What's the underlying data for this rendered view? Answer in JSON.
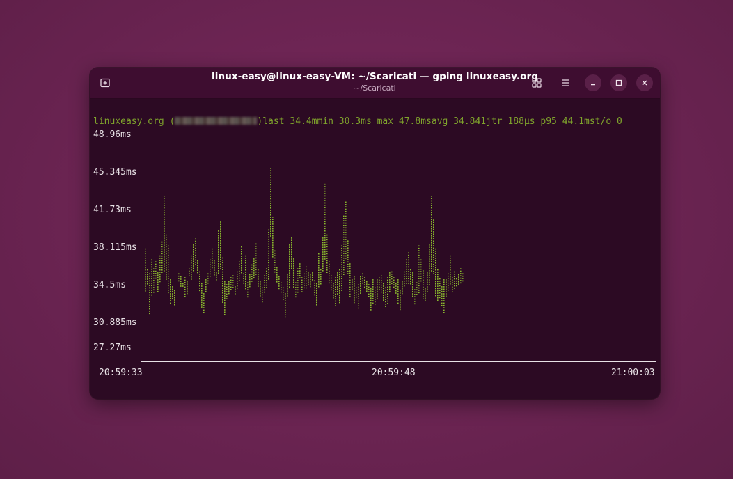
{
  "window": {
    "title": "linux-easy@linux-easy-VM: ~/Scaricati — gping linuxeasy.org",
    "subtitle": "~/Scaricati",
    "icons": {
      "new_tab": "new-tab-icon",
      "view": "grid-view-icon",
      "menu": "hamburger-menu-icon",
      "minimize": "minimize-icon",
      "maximize": "maximize-icon",
      "close": "close-icon"
    }
  },
  "terminal": {
    "host": "linuxeasy.org",
    "open_paren": " (",
    "close_paren": ")",
    "stats": "last 34.4mmin 30.3ms max 47.8msavg 34.841jtr 188µs p95 44.1mst/o 0",
    "text_color": "#7fa32c",
    "plot_color": "#8ab82e"
  },
  "chart_data": {
    "type": "scatter",
    "title": "",
    "xlabel": "",
    "ylabel": "",
    "y_tick_labels": [
      "48.96ms",
      "45.345ms",
      "41.73ms",
      "38.115ms",
      "34.5ms",
      "30.885ms",
      "27.27ms"
    ],
    "x_tick_labels": [
      "20:59:33",
      "20:59:48",
      "21:00:03"
    ],
    "ylim": [
      27.27,
      48.96
    ],
    "series": [
      {
        "values": [
          [
            33.2,
            37.5
          ],
          [
            33.8,
            35.4
          ],
          [
            31.0,
            35.0
          ],
          [
            32.8,
            36.4
          ],
          [
            33.0,
            35.5
          ],
          [
            34.4,
            36.2
          ],
          [
            33.2,
            35.1
          ],
          [
            34.0,
            36.8
          ],
          [
            35.0,
            38.2
          ],
          [
            35.2,
            42.8
          ],
          [
            34.3,
            38.9
          ],
          [
            33.1,
            37.8
          ],
          [
            32.0,
            34.4
          ],
          [
            32.3,
            33.7
          ],
          [
            31.8,
            33.3
          ],
          [
            34.5,
            33.1
          ],
          [
            34.1,
            35.0
          ],
          [
            33.6,
            34.7
          ],
          [
            33.7,
            34.0
          ],
          [
            32.5,
            34.6
          ],
          [
            33.0,
            34.2
          ],
          [
            34.6,
            35.5
          ],
          [
            34.3,
            36.8
          ],
          [
            35.1,
            37.9
          ],
          [
            35.9,
            38.5
          ],
          [
            34.9,
            36.3
          ],
          [
            33.1,
            35.2
          ],
          [
            31.5,
            34.0
          ],
          [
            30.9,
            33.0
          ],
          [
            33.2,
            34.4
          ],
          [
            33.9,
            35.0
          ],
          [
            34.7,
            36.4
          ],
          [
            35.6,
            37.5
          ],
          [
            34.8,
            36.3
          ],
          [
            34.3,
            35.1
          ],
          [
            35.0,
            39.3
          ],
          [
            35.5,
            40.2
          ],
          [
            32.0,
            36.6
          ],
          [
            30.7,
            34.2
          ],
          [
            32.4,
            33.9
          ],
          [
            32.8,
            34.2
          ],
          [
            33.2,
            34.6
          ],
          [
            33.4,
            34.8
          ],
          [
            32.9,
            33.7
          ],
          [
            33.4,
            35.2
          ],
          [
            34.3,
            36.2
          ],
          [
            35.0,
            37.7
          ],
          [
            33.9,
            35.0
          ],
          [
            33.3,
            36.8
          ],
          [
            32.5,
            34.1
          ],
          [
            33.5,
            34.9
          ],
          [
            34.1,
            35.9
          ],
          [
            34.4,
            36.5
          ],
          [
            34.8,
            38.0
          ],
          [
            33.6,
            35.4
          ],
          [
            32.7,
            34.2
          ],
          [
            32.1,
            33.6
          ],
          [
            33.0,
            34.8
          ],
          [
            33.5,
            35.5
          ],
          [
            34.4,
            39.4
          ],
          [
            38.6,
            45.6
          ],
          [
            36.6,
            40.7
          ],
          [
            35.0,
            37.3
          ],
          [
            34.0,
            35.6
          ],
          [
            33.4,
            34.7
          ],
          [
            33.0,
            34.1
          ],
          [
            32.2,
            33.6
          ],
          [
            30.6,
            33.0
          ],
          [
            32.6,
            34.9
          ],
          [
            33.6,
            37.9
          ],
          [
            35.5,
            38.6
          ],
          [
            33.6,
            36.5
          ],
          [
            32.5,
            34.1
          ],
          [
            33.0,
            35.5
          ],
          [
            34.4,
            36.0
          ],
          [
            33.1,
            34.6
          ],
          [
            33.4,
            35.0
          ],
          [
            33.5,
            35.7
          ],
          [
            33.9,
            35.1
          ],
          [
            33.6,
            34.9
          ],
          [
            34.2,
            35.1
          ],
          [
            32.7,
            34.3
          ],
          [
            31.8,
            34.0
          ],
          [
            33.5,
            37.0
          ],
          [
            33.9,
            35.4
          ],
          [
            35.3,
            38.6
          ],
          [
            36.4,
            44.0
          ],
          [
            35.1,
            38.9
          ],
          [
            34.0,
            36.2
          ],
          [
            33.2,
            34.8
          ],
          [
            32.4,
            34.0
          ],
          [
            31.6,
            34.6
          ],
          [
            32.8,
            35.1
          ],
          [
            32.0,
            35.4
          ],
          [
            33.2,
            37.8
          ],
          [
            34.8,
            40.8
          ],
          [
            36.4,
            42.2
          ],
          [
            35.0,
            38.3
          ],
          [
            32.7,
            36.0
          ],
          [
            33.4,
            34.4
          ],
          [
            32.0,
            34.7
          ],
          [
            32.5,
            33.6
          ],
          [
            31.5,
            33.9
          ],
          [
            33.0,
            34.7
          ],
          [
            33.9,
            35.0
          ],
          [
            33.6,
            34.6
          ],
          [
            33.2,
            34.2
          ],
          [
            32.6,
            33.9
          ],
          [
            31.3,
            33.5
          ],
          [
            32.0,
            34.4
          ],
          [
            31.9,
            33.6
          ],
          [
            32.5,
            34.4
          ],
          [
            33.3,
            34.6
          ],
          [
            33.1,
            34.8
          ],
          [
            32.2,
            34.0
          ],
          [
            31.6,
            33.6
          ],
          [
            32.0,
            34.6
          ],
          [
            33.2,
            35.1
          ],
          [
            34.0,
            35.2
          ],
          [
            33.6,
            34.6
          ],
          [
            33.0,
            34.0
          ],
          [
            32.0,
            34.4
          ],
          [
            31.4,
            33.3
          ],
          [
            32.8,
            34.2
          ],
          [
            33.6,
            35.2
          ],
          [
            33.9,
            36.4
          ],
          [
            34.0,
            37.1
          ],
          [
            33.9,
            35.4
          ],
          [
            32.6,
            35.1
          ],
          [
            31.8,
            33.4
          ],
          [
            32.7,
            34.1
          ],
          [
            33.0,
            37.8
          ],
          [
            34.1,
            36.4
          ],
          [
            32.4,
            35.3
          ],
          [
            32.1,
            33.5
          ],
          [
            33.2,
            35.1
          ],
          [
            33.9,
            37.9
          ],
          [
            35.3,
            42.8
          ],
          [
            35.0,
            40.4
          ],
          [
            32.8,
            37.5
          ],
          [
            32.3,
            35.4
          ],
          [
            32.6,
            34.5
          ],
          [
            31.8,
            33.7
          ],
          [
            31.1,
            34.4
          ],
          [
            32.6,
            34.4
          ],
          [
            33.2,
            35.0
          ],
          [
            33.8,
            36.8
          ],
          [
            33.1,
            34.6
          ],
          [
            33.5,
            35.2
          ],
          [
            33.6,
            34.5
          ],
          [
            33.8,
            34.9
          ],
          [
            34.0,
            35.5
          ],
          [
            34.1,
            35.0
          ]
        ]
      }
    ]
  }
}
